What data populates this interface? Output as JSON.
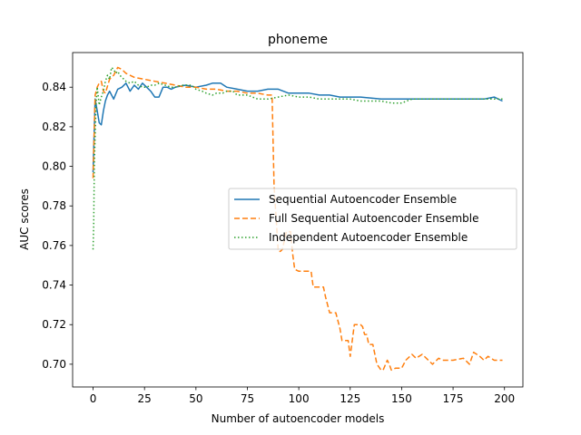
{
  "chart_data": {
    "type": "line",
    "title": "phoneme",
    "xlabel": "Number of autoencoder models",
    "ylabel": "AUC scores",
    "xlim": [
      -9.95,
      208.95
    ],
    "ylim": [
      0.6885,
      0.8575
    ],
    "xticks": [
      0,
      25,
      50,
      75,
      100,
      125,
      150,
      175,
      200
    ],
    "yticks": [
      0.7,
      0.72,
      0.74,
      0.76,
      0.78,
      0.8,
      0.82,
      0.84
    ],
    "xtick_labels": [
      "0",
      "25",
      "50",
      "75",
      "100",
      "125",
      "150",
      "175",
      "200"
    ],
    "ytick_labels": [
      "0.70",
      "0.72",
      "0.74",
      "0.76",
      "0.78",
      "0.80",
      "0.82",
      "0.84"
    ],
    "grid": false,
    "legend_position": "center-right",
    "series": [
      {
        "name": "Sequential Autoencoder Ensemble",
        "color": "#1f77b4",
        "style": "solid",
        "x": [
          0,
          1,
          2,
          3,
          4,
          5,
          6,
          7,
          8,
          10,
          12,
          14,
          16,
          18,
          20,
          22,
          24,
          26,
          28,
          30,
          32,
          34,
          36,
          38,
          40,
          45,
          50,
          55,
          58,
          62,
          65,
          70,
          75,
          80,
          85,
          90,
          95,
          100,
          105,
          110,
          115,
          120,
          125,
          130,
          140,
          150,
          160,
          170,
          180,
          190,
          195,
          199
        ],
        "values": [
          0.797,
          0.834,
          0.828,
          0.822,
          0.821,
          0.828,
          0.833,
          0.836,
          0.838,
          0.834,
          0.839,
          0.84,
          0.842,
          0.838,
          0.841,
          0.839,
          0.842,
          0.84,
          0.838,
          0.835,
          0.835,
          0.84,
          0.84,
          0.839,
          0.84,
          0.841,
          0.84,
          0.841,
          0.842,
          0.842,
          0.84,
          0.839,
          0.838,
          0.838,
          0.839,
          0.839,
          0.837,
          0.837,
          0.837,
          0.836,
          0.836,
          0.835,
          0.835,
          0.835,
          0.834,
          0.834,
          0.834,
          0.834,
          0.834,
          0.834,
          0.835,
          0.833
        ]
      },
      {
        "name": "Full Sequential Autoencoder Ensemble",
        "color": "#ff7f0e",
        "style": "dashed",
        "x": [
          0,
          1,
          2,
          3,
          4,
          5,
          6,
          8,
          10,
          12,
          14,
          16,
          20,
          25,
          30,
          35,
          40,
          45,
          50,
          55,
          60,
          65,
          70,
          75,
          80,
          85,
          87,
          88,
          90,
          91,
          92,
          94,
          96,
          97,
          98,
          100,
          103,
          106,
          107,
          110,
          112,
          113,
          115,
          118,
          120,
          121,
          123,
          124,
          125,
          127,
          130,
          131,
          132,
          133,
          134,
          136,
          138,
          140,
          141,
          143,
          144,
          145,
          147,
          150,
          152,
          155,
          157,
          160,
          163,
          165,
          168,
          170,
          175,
          180,
          183,
          185,
          188,
          190,
          192,
          195,
          199
        ],
        "values": [
          0.794,
          0.836,
          0.84,
          0.842,
          0.843,
          0.838,
          0.837,
          0.844,
          0.846,
          0.85,
          0.849,
          0.847,
          0.845,
          0.844,
          0.843,
          0.842,
          0.841,
          0.84,
          0.84,
          0.839,
          0.839,
          0.838,
          0.838,
          0.837,
          0.837,
          0.836,
          0.836,
          0.79,
          0.757,
          0.757,
          0.758,
          0.767,
          0.767,
          0.756,
          0.748,
          0.747,
          0.747,
          0.747,
          0.739,
          0.739,
          0.739,
          0.734,
          0.726,
          0.726,
          0.718,
          0.712,
          0.712,
          0.712,
          0.704,
          0.72,
          0.72,
          0.719,
          0.715,
          0.715,
          0.71,
          0.71,
          0.7,
          0.697,
          0.697,
          0.702,
          0.7,
          0.697,
          0.698,
          0.698,
          0.702,
          0.705,
          0.703,
          0.705,
          0.702,
          0.7,
          0.703,
          0.702,
          0.702,
          0.703,
          0.7,
          0.706,
          0.704,
          0.702,
          0.704,
          0.702,
          0.702
        ]
      },
      {
        "name": "Independent Autoencoder Ensemble",
        "color": "#2ca02c",
        "style": "dotted",
        "x": [
          0,
          0.3,
          0.6,
          1,
          1.5,
          2,
          3,
          4,
          5,
          6,
          7,
          8,
          9,
          10,
          11,
          12,
          13,
          14,
          16,
          18,
          20,
          22,
          24,
          26,
          28,
          30,
          32,
          35,
          38,
          40,
          43,
          45,
          48,
          50,
          53,
          55,
          58,
          60,
          63,
          65,
          68,
          70,
          75,
          80,
          85,
          90,
          95,
          100,
          105,
          110,
          115,
          120,
          125,
          130,
          135,
          140,
          145,
          150,
          155,
          160,
          165,
          170,
          175,
          180,
          185,
          190,
          195,
          199
        ],
        "values": [
          0.758,
          0.77,
          0.8,
          0.815,
          0.832,
          0.84,
          0.831,
          0.835,
          0.838,
          0.843,
          0.846,
          0.844,
          0.85,
          0.849,
          0.847,
          0.848,
          0.846,
          0.845,
          0.843,
          0.842,
          0.843,
          0.841,
          0.84,
          0.84,
          0.841,
          0.841,
          0.842,
          0.841,
          0.84,
          0.84,
          0.841,
          0.841,
          0.841,
          0.839,
          0.838,
          0.837,
          0.836,
          0.837,
          0.837,
          0.838,
          0.838,
          0.836,
          0.836,
          0.834,
          0.834,
          0.835,
          0.836,
          0.835,
          0.835,
          0.834,
          0.834,
          0.834,
          0.834,
          0.833,
          0.833,
          0.833,
          0.832,
          0.832,
          0.834,
          0.834,
          0.834,
          0.834,
          0.834,
          0.834,
          0.834,
          0.834,
          0.834,
          0.834
        ]
      }
    ]
  }
}
